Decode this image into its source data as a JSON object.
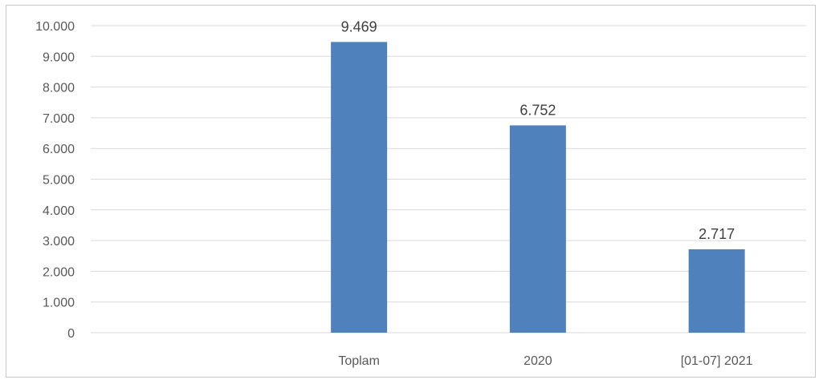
{
  "chart_data": {
    "type": "bar",
    "categories": [
      "",
      "Toplam",
      "2020",
      "[01-07] 2021"
    ],
    "values": [
      null,
      9469,
      6752,
      2717
    ],
    "data_labels": [
      "",
      "9.469",
      "6.752",
      "2.717"
    ],
    "y_ticks": [
      "0",
      "1.000",
      "2.000",
      "3.000",
      "4.000",
      "5.000",
      "6.000",
      "7.000",
      "8.000",
      "9.000",
      "10.000"
    ],
    "ylim": [
      0,
      10000
    ],
    "grid": true,
    "legend": "none",
    "colors": {
      "bar": "#4f81bd",
      "grid": "#d9d9d9",
      "axis": "#d9d9d9"
    }
  }
}
